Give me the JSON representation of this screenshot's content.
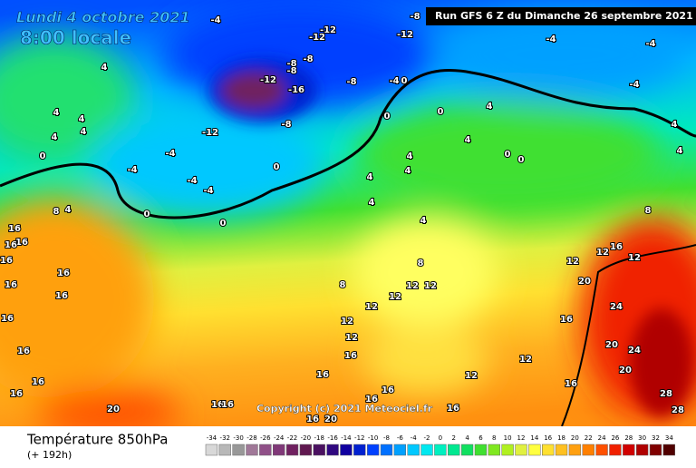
{
  "header": {
    "title": "Lundi 4 octobre 2021",
    "subtitle": "8:00 locale",
    "run": "Run GFS 6 Z du Dimanche 26 septembre 2021"
  },
  "footer": {
    "variable": "Température 850hPa",
    "lead": "(+ 192h)",
    "copyright": "Copyright (c) 2021 Meteociel.fr"
  },
  "legend": {
    "values": [
      -34,
      -32,
      -30,
      -28,
      -26,
      -24,
      -22,
      -20,
      -18,
      -16,
      -14,
      -12,
      -10,
      -8,
      -6,
      -4,
      -2,
      0,
      2,
      4,
      6,
      8,
      10,
      12,
      14,
      16,
      18,
      20,
      22,
      24,
      26,
      28,
      30,
      32,
      34
    ],
    "colors": [
      "#d8d8d8",
      "#b8b8b8",
      "#989898",
      "#a07898",
      "#905088",
      "#803878",
      "#702060",
      "#601850",
      "#4a1060",
      "#300880",
      "#1000a0",
      "#0020d0",
      "#0040ff",
      "#0070ff",
      "#00a0ff",
      "#00c8ff",
      "#00e8f0",
      "#00f0c0",
      "#00e890",
      "#10e060",
      "#40e030",
      "#80e820",
      "#b0f020",
      "#e0f040",
      "#ffff40",
      "#ffe030",
      "#ffc020",
      "#ffa010",
      "#ff8000",
      "#ff5000",
      "#f02000",
      "#d00000",
      "#b00000",
      "#800000",
      "#500000"
    ]
  },
  "isotherm_labels": [
    -4,
    -12,
    -12,
    -8,
    -12,
    -4,
    -4,
    -4,
    4,
    -8,
    -8,
    -8,
    -12,
    -16,
    -8,
    -4,
    0,
    4,
    4,
    4,
    4,
    0,
    -12,
    -8,
    -4,
    -4,
    -4,
    -4,
    0,
    0,
    0,
    0,
    0,
    4,
    4,
    0,
    0,
    4,
    4,
    4,
    4,
    4,
    8,
    4,
    16,
    16,
    16,
    16,
    16,
    16,
    16,
    16,
    8,
    8,
    12,
    12,
    12,
    12,
    12,
    12,
    16,
    16,
    16,
    16,
    16,
    16,
    16,
    16,
    16,
    20,
    16,
    20,
    16,
    12,
    12,
    16,
    16,
    20,
    12,
    16,
    12,
    8,
    12,
    24,
    24,
    20,
    20,
    28,
    28,
    4,
    4
  ]
}
